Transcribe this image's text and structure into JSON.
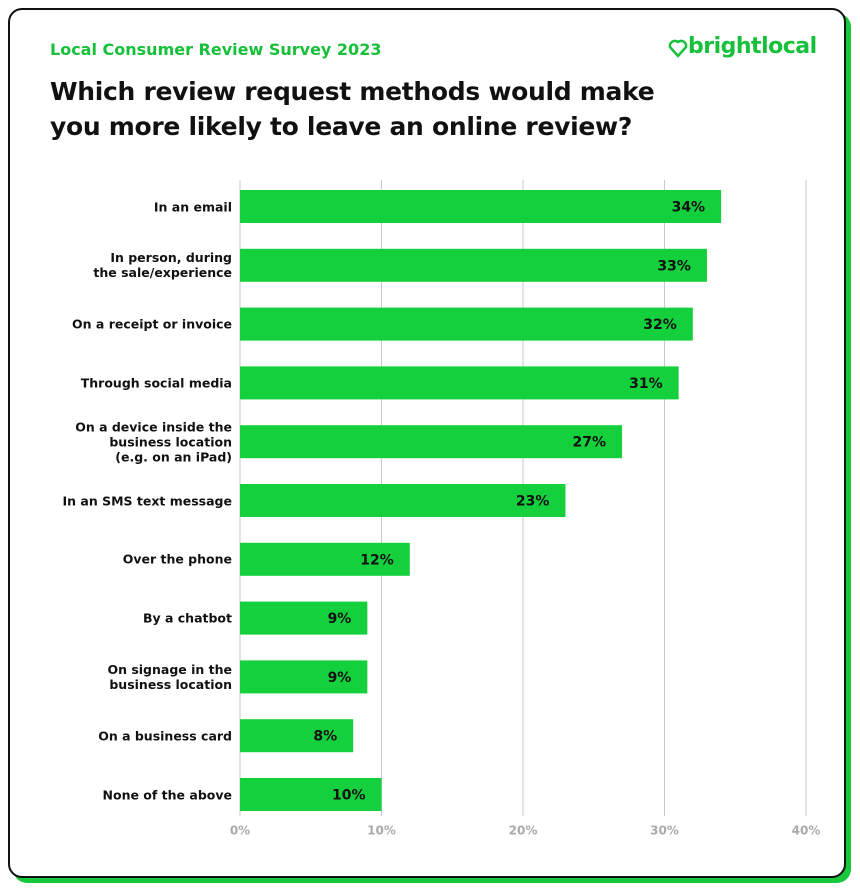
{
  "header": {
    "subtitle": "Local Consumer Review Survey 2023",
    "brand": "brightlocal",
    "title": "Which review request methods would make\nyou more likely to leave an online review?"
  },
  "chart_data": {
    "type": "bar",
    "orientation": "horizontal",
    "color": "#15d03d",
    "grid": true,
    "categories": [
      "In an email",
      "In person, during\nthe sale/experience",
      "On a receipt or invoice",
      "Through social media",
      "On a device inside the\nbusiness location\n(e.g. on an iPad)",
      "In an SMS text message",
      "Over the phone",
      "By a chatbot",
      "On signage in the\nbusiness location",
      "On a business card",
      "None of the above"
    ],
    "values": [
      34,
      33,
      32,
      31,
      27,
      23,
      12,
      9,
      9,
      8,
      10
    ],
    "value_labels": [
      "34%",
      "33%",
      "32%",
      "31%",
      "27%",
      "23%",
      "12%",
      "9%",
      "9%",
      "8%",
      "10%"
    ],
    "xlim": [
      0,
      40
    ],
    "xticks": [
      {
        "value": 0,
        "label": "0%"
      },
      {
        "value": 10,
        "label": "10%"
      },
      {
        "value": 20,
        "label": "20%"
      },
      {
        "value": 30,
        "label": "30%"
      },
      {
        "value": 40,
        "label": "40%"
      }
    ]
  }
}
